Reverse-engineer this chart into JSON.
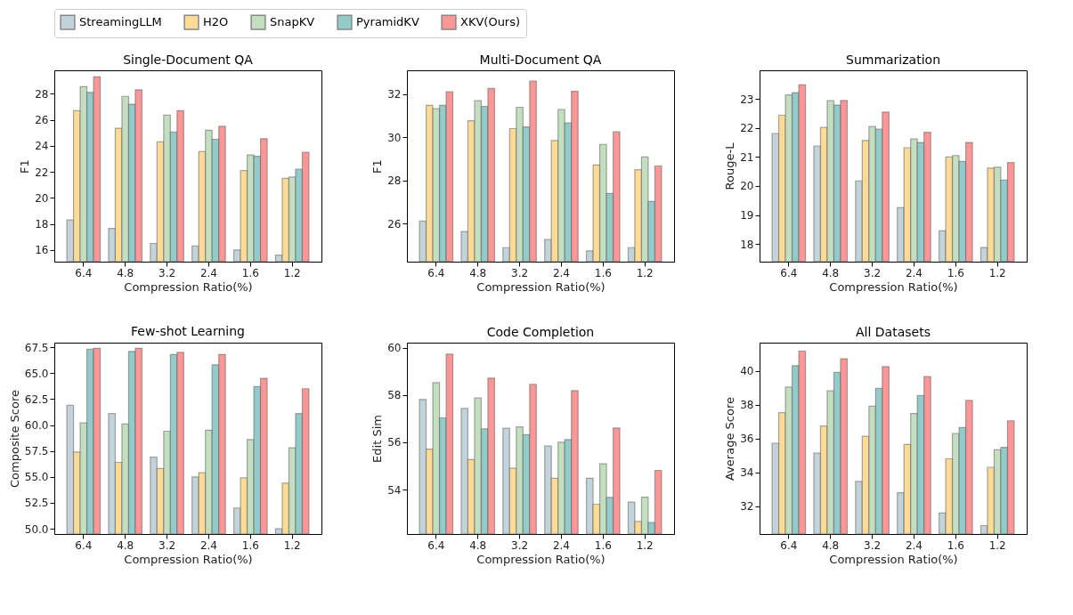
{
  "chart_data": [
    {
      "type": "bar",
      "title": "Single-Document QA",
      "xlabel": "Compression Ratio(%)",
      "ylabel": "F1",
      "legend": "top",
      "categories": [
        "6.4",
        "4.8",
        "3.2",
        "2.4",
        "1.6",
        "1.2"
      ],
      "ylim": [
        15.1,
        29.8
      ],
      "yticks": [
        16,
        18,
        20,
        22,
        24,
        26,
        28
      ],
      "series": [
        {
          "name": "StreamingLLM",
          "color": "#c3d3da",
          "values": [
            18.3,
            17.65,
            16.5,
            16.3,
            16.0,
            15.6
          ]
        },
        {
          "name": "H2O",
          "color": "#fddb96",
          "values": [
            26.7,
            25.35,
            24.3,
            23.55,
            22.1,
            21.5
          ]
        },
        {
          "name": "SnapKV",
          "color": "#c4dfc0",
          "values": [
            28.55,
            27.8,
            26.35,
            25.2,
            23.3,
            21.6
          ]
        },
        {
          "name": "PyramidKV",
          "color": "#93cbcb",
          "values": [
            28.1,
            27.2,
            25.05,
            24.5,
            23.2,
            22.2
          ]
        },
        {
          "name": "XKV(Ours)",
          "color": "#fb9797",
          "values": [
            29.3,
            28.3,
            26.7,
            25.5,
            24.55,
            23.5
          ]
        }
      ]
    },
    {
      "type": "bar",
      "title": "Multi-Document QA",
      "xlabel": "Compression Ratio(%)",
      "ylabel": "F1",
      "categories": [
        "6.4",
        "4.8",
        "3.2",
        "2.4",
        "1.6",
        "1.2"
      ],
      "ylim": [
        24.24,
        33.1
      ],
      "yticks": [
        26,
        28,
        30,
        32
      ],
      "series": [
        {
          "name": "StreamingLLM",
          "color": "#c3d3da",
          "values": [
            26.12,
            25.64,
            24.89,
            25.27,
            24.74,
            24.89
          ]
        },
        {
          "name": "H2O",
          "color": "#fddb96",
          "values": [
            31.48,
            30.77,
            30.4,
            29.85,
            28.72,
            28.5
          ]
        },
        {
          "name": "SnapKV",
          "color": "#c4dfc0",
          "values": [
            31.32,
            31.69,
            31.39,
            31.28,
            29.67,
            29.09
          ]
        },
        {
          "name": "PyramidKV",
          "color": "#93cbcb",
          "values": [
            31.48,
            31.43,
            30.48,
            30.66,
            27.4,
            27.03
          ]
        },
        {
          "name": "XKV(Ours)",
          "color": "#fb9797",
          "values": [
            32.11,
            32.26,
            32.6,
            32.13,
            30.25,
            28.67
          ]
        }
      ]
    },
    {
      "type": "bar",
      "title": "Summarization",
      "xlabel": "Compression Ratio(%)",
      "ylabel": "Rouge-L",
      "categories": [
        "6.4",
        "4.8",
        "3.2",
        "2.4",
        "1.6",
        "1.2"
      ],
      "ylim": [
        17.39,
        23.99
      ],
      "yticks": [
        18,
        19,
        20,
        21,
        22,
        23
      ],
      "series": [
        {
          "name": "StreamingLLM",
          "color": "#c3d3da",
          "values": [
            21.81,
            21.38,
            20.17,
            19.25,
            18.45,
            17.88
          ]
        },
        {
          "name": "H2O",
          "color": "#fddb96",
          "values": [
            22.44,
            22.02,
            21.57,
            21.32,
            21.0,
            20.62
          ]
        },
        {
          "name": "SnapKV",
          "color": "#c4dfc0",
          "values": [
            23.14,
            22.94,
            22.05,
            21.62,
            21.05,
            20.65
          ]
        },
        {
          "name": "PyramidKV",
          "color": "#93cbcb",
          "values": [
            23.22,
            22.79,
            21.96,
            21.5,
            20.85,
            20.2
          ]
        },
        {
          "name": "XKV(Ours)",
          "color": "#fb9797",
          "values": [
            23.49,
            22.95,
            22.55,
            21.85,
            21.5,
            20.81
          ]
        }
      ]
    },
    {
      "type": "bar",
      "title": "Few-shot Learning",
      "xlabel": "Compression Ratio(%)",
      "ylabel": "Composite Score",
      "categories": [
        "6.4",
        "4.8",
        "3.2",
        "2.4",
        "1.6",
        "1.2"
      ],
      "ylim": [
        49.49,
        67.94
      ],
      "yticks": [
        {
          "value": 50,
          "label": "50.0"
        },
        52.5,
        {
          "value": 55,
          "label": "55.0"
        },
        57.5,
        {
          "value": 60,
          "label": "60.0"
        },
        62.5,
        {
          "value": 65,
          "label": "65.0"
        },
        67.5
      ],
      "series": [
        {
          "name": "StreamingLLM",
          "color": "#c3d3da",
          "values": [
            61.9,
            61.1,
            56.9,
            55.0,
            52.0,
            50.0
          ]
        },
        {
          "name": "H2O",
          "color": "#fddb96",
          "values": [
            57.4,
            56.4,
            55.8,
            55.4,
            54.9,
            54.4
          ]
        },
        {
          "name": "SnapKV",
          "color": "#c4dfc0",
          "values": [
            60.2,
            60.1,
            59.4,
            59.5,
            58.6,
            57.8
          ]
        },
        {
          "name": "PyramidKV",
          "color": "#93cbcb",
          "values": [
            67.3,
            67.1,
            66.8,
            65.8,
            63.7,
            61.1
          ]
        },
        {
          "name": "XKV(Ours)",
          "color": "#fb9797",
          "values": [
            67.4,
            67.4,
            67.0,
            66.8,
            64.5,
            63.5
          ]
        }
      ]
    },
    {
      "type": "bar",
      "title": "Code Completion",
      "xlabel": "Compression Ratio(%)",
      "ylabel": "Edit Sim",
      "categories": [
        "6.4",
        "4.8",
        "3.2",
        "2.4",
        "1.6",
        "1.2"
      ],
      "ylim": [
        52.12,
        60.21
      ],
      "yticks": [
        54,
        56,
        58,
        60
      ],
      "series": [
        {
          "name": "StreamingLLM",
          "color": "#c3d3da",
          "values": [
            57.81,
            57.43,
            56.59,
            55.84,
            54.48,
            53.47
          ]
        },
        {
          "name": "H2O",
          "color": "#fddb96",
          "values": [
            55.71,
            55.27,
            54.9,
            54.48,
            53.38,
            52.65
          ]
        },
        {
          "name": "SnapKV",
          "color": "#c4dfc0",
          "values": [
            58.52,
            57.87,
            56.65,
            56.0,
            55.09,
            53.68
          ]
        },
        {
          "name": "PyramidKV",
          "color": "#93cbcb",
          "values": [
            57.03,
            56.57,
            56.32,
            56.11,
            53.67,
            52.61
          ]
        },
        {
          "name": "XKV(Ours)",
          "color": "#fb9797",
          "values": [
            59.73,
            58.71,
            58.45,
            58.18,
            56.6,
            54.81
          ]
        }
      ]
    },
    {
      "type": "bar",
      "title": "All Datasets",
      "xlabel": "Compression Ratio(%)",
      "ylabel": "Average Score",
      "categories": [
        "6.4",
        "4.8",
        "3.2",
        "2.4",
        "1.6",
        "1.2"
      ],
      "ylim": [
        30.35,
        41.67
      ],
      "yticks": [
        32,
        34,
        36,
        38,
        40
      ],
      "series": [
        {
          "name": "StreamingLLM",
          "color": "#c3d3da",
          "values": [
            35.72,
            35.13,
            33.46,
            32.79,
            31.59,
            30.85
          ]
        },
        {
          "name": "H2O",
          "color": "#fddb96",
          "values": [
            37.53,
            36.74,
            36.13,
            35.65,
            34.8,
            34.3
          ]
        },
        {
          "name": "SnapKV",
          "color": "#c4dfc0",
          "values": [
            39.04,
            38.82,
            37.91,
            37.48,
            36.3,
            35.33
          ]
        },
        {
          "name": "PyramidKV",
          "color": "#93cbcb",
          "values": [
            40.31,
            39.92,
            38.96,
            38.54,
            36.65,
            35.48
          ]
        },
        {
          "name": "XKV(Ours)",
          "color": "#fb9797",
          "values": [
            41.17,
            40.72,
            40.25,
            39.67,
            38.25,
            37.05
          ]
        }
      ]
    }
  ]
}
